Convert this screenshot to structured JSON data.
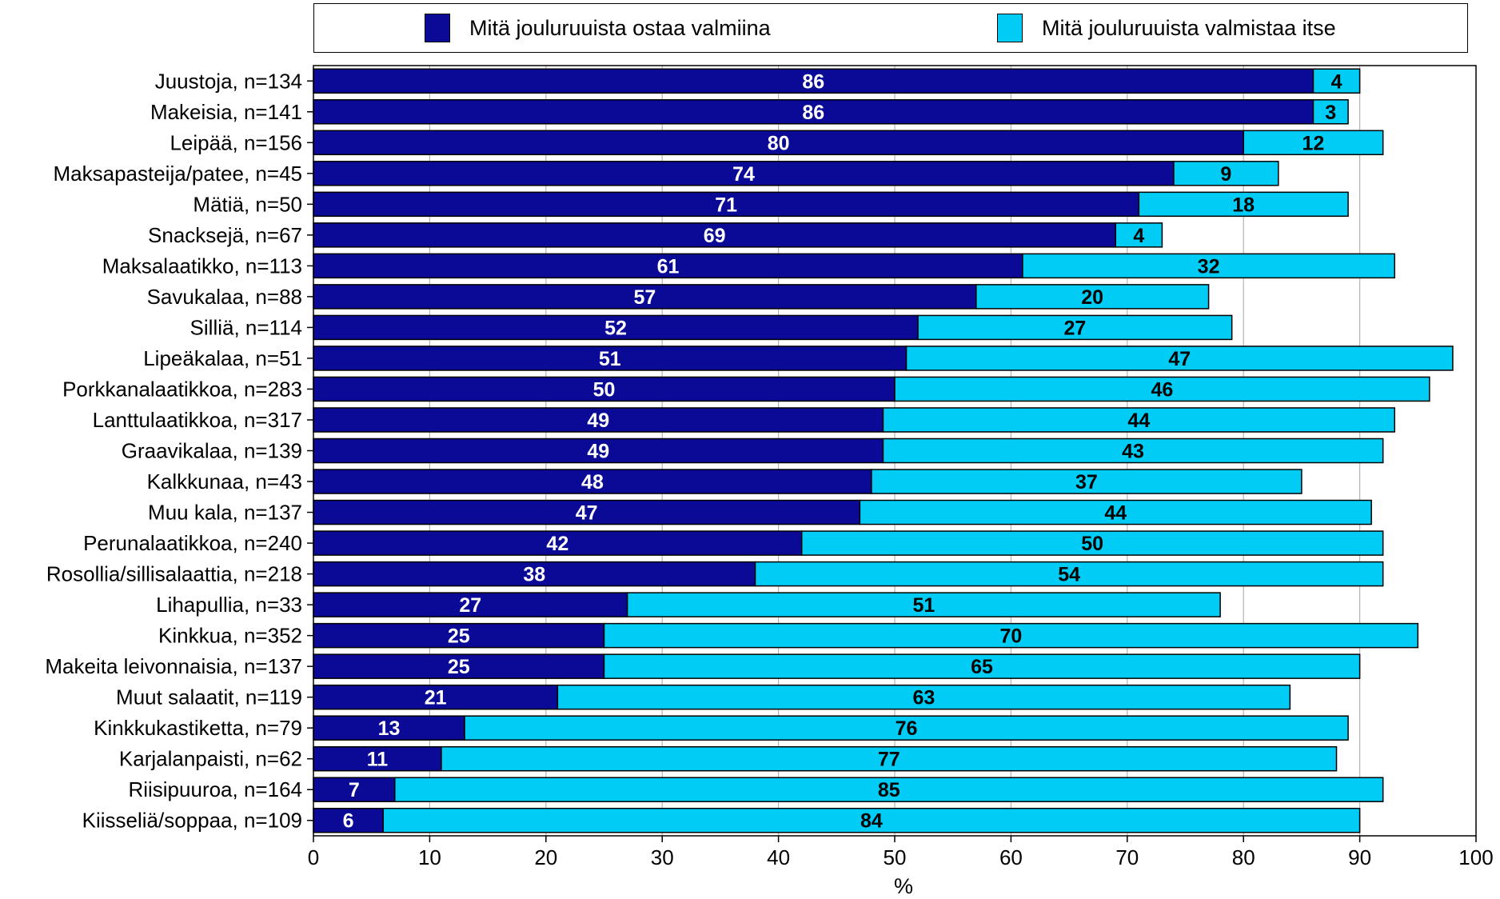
{
  "chart_data": {
    "type": "bar",
    "orientation": "horizontal",
    "stacked": true,
    "categories": [
      "Juustoja, n=134",
      "Makeisia, n=141",
      "Leipää, n=156",
      "Maksapasteija/patee, n=45",
      "Mätiä, n=50",
      "Snacksejä, n=67",
      "Maksalaatikko, n=113",
      "Savukalaa, n=88",
      "Silliä, n=114",
      "Lipeäkalaa, n=51",
      "Porkkanalaatikkoa, n=283",
      "Lanttulaatikkoa, n=317",
      "Graavikalaa, n=139",
      "Kalkkunaa, n=43",
      "Muu kala, n=137",
      "Perunalaatikkoa, n=240",
      "Rosollia/sillisalaattia, n=218",
      "Lihapullia, n=33",
      "Kinkkua, n=352",
      "Makeita leivonnaisia, n=137",
      "Muut salaatit, n=119",
      "Kinkkukastiketta, n=79",
      "Karjalanpaisti, n=62",
      "Riisipuuroa, n=164",
      "Kiisseliä/soppaa, n=109"
    ],
    "series": [
      {
        "name": "Mitä jouluruuista ostaa valmiina",
        "color": "#0a0a96",
        "label_color": "#ffffff",
        "values": [
          86,
          86,
          80,
          74,
          71,
          69,
          61,
          57,
          52,
          51,
          50,
          49,
          49,
          48,
          47,
          42,
          38,
          27,
          25,
          25,
          21,
          13,
          11,
          7,
          6
        ]
      },
      {
        "name": "Mitä jouluruuista valmistaa itse",
        "color": "#00ccf5",
        "label_color": "#000000",
        "values": [
          4,
          3,
          12,
          9,
          18,
          4,
          32,
          20,
          27,
          47,
          46,
          44,
          43,
          37,
          44,
          50,
          54,
          51,
          70,
          65,
          63,
          76,
          77,
          85,
          84
        ]
      }
    ],
    "x_ticks": [
      "0",
      "10",
      "20",
      "30",
      "40",
      "50",
      "60",
      "70",
      "80",
      "90",
      "100"
    ],
    "xlim": [
      0,
      100
    ],
    "xlabel": "%",
    "ylabel": "",
    "grid": "vertical",
    "legend_position": "top"
  }
}
